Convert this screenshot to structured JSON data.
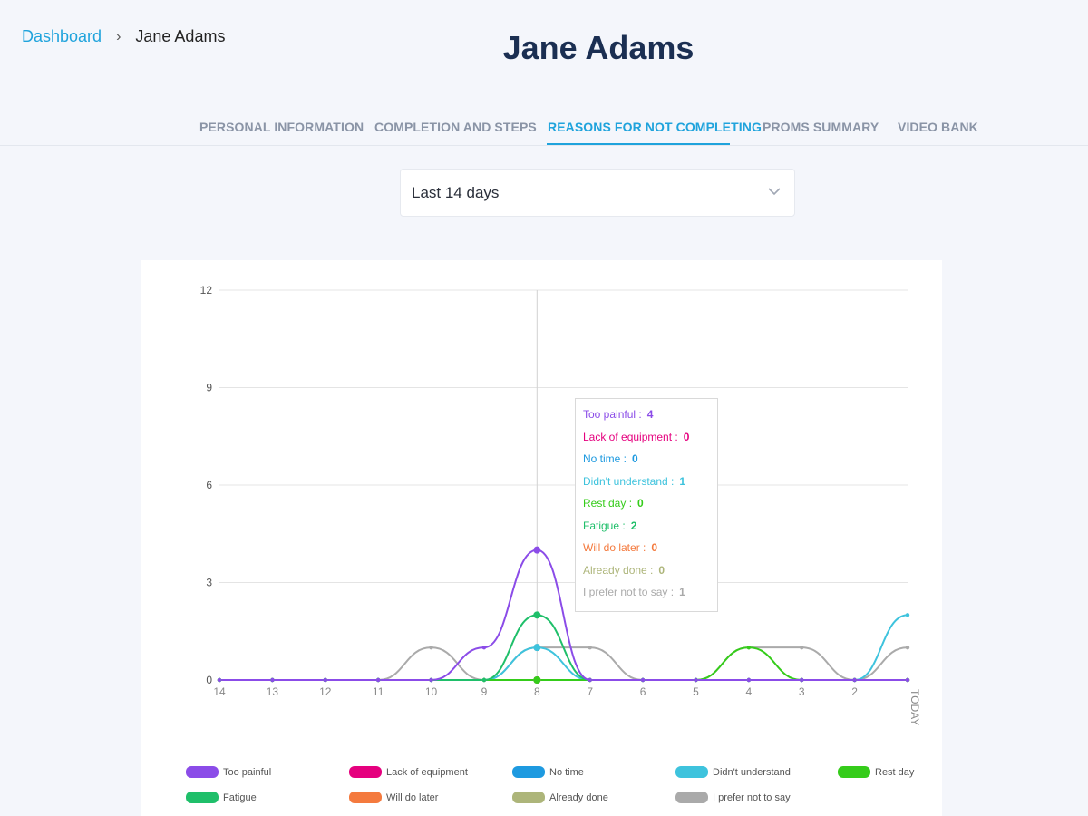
{
  "breadcrumb": {
    "link": "Dashboard",
    "separator": "›",
    "current": "Jane Adams"
  },
  "title": "Jane Adams",
  "tabs": [
    {
      "label": "PERSONAL INFORMATION",
      "active": false
    },
    {
      "label": "COMPLETION AND STEPS",
      "active": false
    },
    {
      "label": "REASONS FOR NOT COMPLETING",
      "active": true
    },
    {
      "label": "PROMS SUMMARY",
      "active": false
    },
    {
      "label": "VIDEO BANK",
      "active": false
    }
  ],
  "period_select": {
    "value": "Last 14 days"
  },
  "chart_data": {
    "type": "line",
    "x": [
      "14",
      "13",
      "12",
      "11",
      "10",
      "9",
      "8",
      "7",
      "6",
      "5",
      "4",
      "3",
      "2",
      "TODAY"
    ],
    "ylim": [
      0,
      12
    ],
    "yticks": [
      "0",
      "3",
      "6",
      "9",
      "12"
    ],
    "grid": true,
    "legend": "bottom",
    "series": [
      {
        "name": "Too painful",
        "color": "#8b4ce8",
        "values": [
          0,
          0,
          0,
          0,
          0,
          1,
          4,
          0,
          0,
          0,
          0,
          0,
          0,
          0
        ]
      },
      {
        "name": "Lack of equipment",
        "color": "#e5007e",
        "values": [
          0,
          0,
          0,
          0,
          0,
          0,
          0,
          0,
          0,
          0,
          0,
          0,
          0,
          0
        ]
      },
      {
        "name": "No time",
        "color": "#1e9ae0",
        "values": [
          0,
          0,
          0,
          0,
          0,
          0,
          0,
          0,
          0,
          0,
          0,
          0,
          0,
          0
        ]
      },
      {
        "name": "Didn't understand",
        "color": "#3ec3dd",
        "values": [
          0,
          0,
          0,
          0,
          0,
          0,
          1,
          0,
          0,
          0,
          0,
          0,
          0,
          2
        ]
      },
      {
        "name": "Rest day",
        "color": "#35cc1a",
        "values": [
          0,
          0,
          0,
          0,
          0,
          0,
          0,
          0,
          0,
          0,
          1,
          0,
          0,
          0
        ]
      },
      {
        "name": "Fatigue",
        "color": "#1fbf6a",
        "values": [
          0,
          0,
          0,
          0,
          0,
          0,
          2,
          0,
          0,
          0,
          0,
          0,
          0,
          0
        ]
      },
      {
        "name": "Will do later",
        "color": "#f47a3e",
        "values": [
          0,
          0,
          0,
          0,
          0,
          0,
          0,
          0,
          0,
          0,
          0,
          0,
          0,
          0
        ]
      },
      {
        "name": "Already done",
        "color": "#adb57a",
        "values": [
          0,
          0,
          0,
          0,
          0,
          0,
          0,
          0,
          0,
          0,
          0,
          0,
          0,
          0
        ]
      },
      {
        "name": "I prefer not to say",
        "color": "#aaaaaa",
        "values": [
          0,
          0,
          0,
          0,
          1,
          0,
          1,
          1,
          0,
          0,
          1,
          1,
          0,
          1
        ]
      }
    ],
    "hover_x": "8",
    "tooltip": [
      {
        "label": "Too painful :",
        "value": "4",
        "color": "#8b4ce8"
      },
      {
        "label": "Lack of equipment :",
        "value": "0",
        "color": "#e5007e"
      },
      {
        "label": "No time :",
        "value": "0",
        "color": "#1e9ae0"
      },
      {
        "label": "Didn't understand :",
        "value": "1",
        "color": "#3ec3dd"
      },
      {
        "label": "Rest day :",
        "value": "0",
        "color": "#35cc1a"
      },
      {
        "label": "Fatigue :",
        "value": "2",
        "color": "#1fbf6a"
      },
      {
        "label": "Will do later :",
        "value": "0",
        "color": "#f47a3e"
      },
      {
        "label": "Already done :",
        "value": "0",
        "color": "#adb57a"
      },
      {
        "label": "I prefer not to say :",
        "value": "1",
        "color": "#aaaaaa"
      }
    ]
  }
}
